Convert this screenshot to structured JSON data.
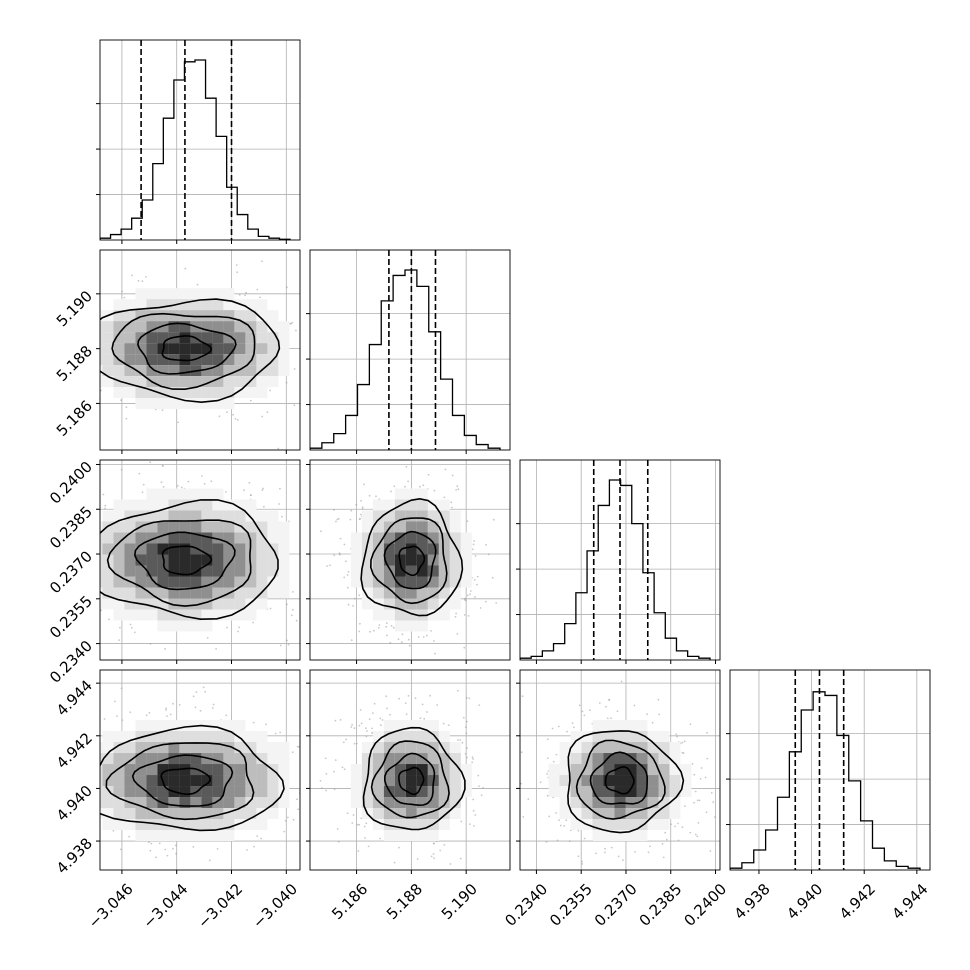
{
  "chart_data": {
    "type": "corner",
    "title": "",
    "parameters": [
      {
        "label": "",
        "range": [
          -3.0468,
          -3.0395
        ],
        "ticks": [
          -3.046,
          -3.044,
          -3.042,
          -3.04
        ],
        "tick_labels": [
          "−3.046",
          "−3.044",
          "−3.042",
          "−3.040"
        ],
        "quantiles": [
          -3.0453,
          -3.0437,
          -3.042
        ],
        "median": -3.0437
      },
      {
        "label": "",
        "range": [
          5.1843,
          5.1916
        ],
        "ticks": [
          5.186,
          5.188,
          5.19
        ],
        "tick_labels": [
          "5.186",
          "5.188",
          "5.190"
        ],
        "quantiles": [
          5.18718,
          5.188,
          5.18888
        ],
        "median": 5.188
      },
      {
        "label": "",
        "range": [
          0.23345,
          0.24015
        ],
        "ticks": [
          0.234,
          0.2355,
          0.237,
          0.2385,
          0.24
        ],
        "tick_labels": [
          "0.2340",
          "0.2355",
          "0.2370",
          "0.2385",
          "0.2400"
        ],
        "quantiles": [
          0.23592,
          0.2368,
          0.23773
        ],
        "median": 0.2368
      },
      {
        "label": "",
        "range": [
          4.9369,
          4.9445
        ],
        "ticks": [
          4.938,
          4.94,
          4.942,
          4.944
        ],
        "tick_labels": [
          "4.938",
          "4.940",
          "4.942",
          "4.944"
        ],
        "quantiles": [
          4.93938,
          4.9403,
          4.94122
        ],
        "median": 4.9403
      }
    ],
    "hist_ylim": 1.1,
    "histograms": [
      [
        0.01,
        0.03,
        0.06,
        0.12,
        0.22,
        0.42,
        0.67,
        0.88,
        0.98,
        0.99,
        0.78,
        0.57,
        0.29,
        0.14,
        0.06,
        0.02,
        0.01,
        0.004
      ],
      [
        0.01,
        0.04,
        0.09,
        0.19,
        0.36,
        0.58,
        0.82,
        0.96,
        0.99,
        0.9,
        0.65,
        0.39,
        0.19,
        0.08,
        0.03,
        0.01
      ],
      [
        0.01,
        0.02,
        0.05,
        0.09,
        0.2,
        0.37,
        0.6,
        0.85,
        0.99,
        0.96,
        0.75,
        0.48,
        0.26,
        0.12,
        0.05,
        0.02,
        0.01
      ],
      [
        0.01,
        0.04,
        0.11,
        0.22,
        0.4,
        0.65,
        0.88,
        0.98,
        0.96,
        0.74,
        0.49,
        0.27,
        0.12,
        0.05,
        0.02,
        0.01
      ]
    ],
    "correlations": [
      [
        1,
        0,
        0,
        0
      ],
      [
        0,
        1,
        0,
        0
      ],
      [
        0,
        0,
        1,
        0
      ],
      [
        0,
        0,
        0,
        1
      ]
    ],
    "contour_levels_sigma": [
      0.5,
      1.0,
      1.5,
      2.0
    ],
    "grid": true
  }
}
